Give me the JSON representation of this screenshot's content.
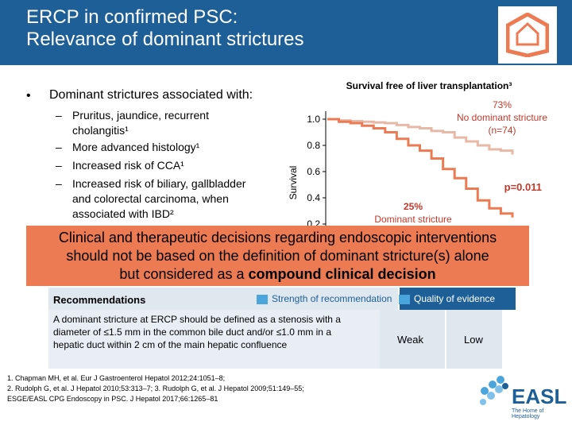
{
  "header": {
    "title_line1": "ERCP in confirmed PSC:",
    "title_line2": "Relevance of dominant strictures"
  },
  "bullet": {
    "marker": "•",
    "heading": "Dominant strictures associated with:",
    "items": [
      {
        "dash": "–",
        "text": "Pruritus, jaundice, recurrent cholangitis¹"
      },
      {
        "dash": "–",
        "text": "More advanced histology¹"
      },
      {
        "dash": "–",
        "text": "Increased risk of CCA¹"
      },
      {
        "dash": "–",
        "text": "Increased risk of biliary, gallbladder and colorectal carcinoma, when associated with IBD²"
      }
    ]
  },
  "chart_data": {
    "type": "line",
    "title": "Survival free of liver transplantation³",
    "ylabel": "Survival",
    "yticks": [
      "1.0",
      "0.8",
      "0.6",
      "0.4",
      "0.2"
    ],
    "ylim": [
      0.2,
      1.0
    ],
    "series": [
      {
        "name": "No dominant stricture (n=74)",
        "color": "#e8b8a6",
        "steps": [
          [
            0,
            1.0
          ],
          [
            1,
            0.99
          ],
          [
            2,
            0.985
          ],
          [
            3,
            0.98
          ],
          [
            4,
            0.975
          ],
          [
            5,
            0.97
          ],
          [
            6,
            0.955
          ],
          [
            7,
            0.94
          ],
          [
            8,
            0.93
          ],
          [
            9,
            0.91
          ],
          [
            10,
            0.9
          ],
          [
            11,
            0.86
          ],
          [
            12,
            0.83
          ],
          [
            13,
            0.8
          ],
          [
            14,
            0.77
          ],
          [
            15,
            0.76
          ],
          [
            16,
            0.73
          ]
        ]
      },
      {
        "name": "Dominant stricture",
        "color": "#ec7b54",
        "steps": [
          [
            0,
            1.0
          ],
          [
            1,
            0.98
          ],
          [
            2,
            0.97
          ],
          [
            3,
            0.95
          ],
          [
            4,
            0.93
          ],
          [
            5,
            0.9
          ],
          [
            6,
            0.85
          ],
          [
            7,
            0.8
          ],
          [
            8,
            0.76
          ],
          [
            9,
            0.7
          ],
          [
            10,
            0.62
          ],
          [
            11,
            0.55
          ],
          [
            12,
            0.47
          ],
          [
            13,
            0.38
          ],
          [
            14,
            0.32
          ],
          [
            15,
            0.28
          ],
          [
            16,
            0.25
          ]
        ]
      }
    ],
    "annotations": {
      "upper_pct": "73%",
      "upper_line1": "No dominant stricture",
      "upper_line2": "(n=74)",
      "pvalue": "p=0.011",
      "lower_pct": "25%",
      "lower_label": "Dominant stricture"
    }
  },
  "banner": {
    "line1": "Clinical and therapeutic decisions regarding endoscopic interventions",
    "line2": "should not be based on the definition of dominant stricture(s) alone",
    "line3_normal": "but considered as a ",
    "line3_bold": "compound clinical decision"
  },
  "recommendations": {
    "header": "Recommendations",
    "strength_label": "Strength of recommendation",
    "quality_label": "Quality of evidence",
    "text": "A dominant stricture at ERCP should be defined as a stenosis with a diameter of ≤1.5 mm in the common bile duct and/or ≤1.0 mm in a hepatic duct within 2 cm of the main hepatic confluence",
    "strength": "Weak",
    "quality": "Low",
    "accent": "#4aa5dc"
  },
  "references": [
    "1. Chapman MH, et al. Eur J Gastroenterol Hepatol 2012;24:1051–8;",
    "2. Rudolph G, et al. J Hepatol 2010;53:313–7; 3. Rudolph G, et al. J Hepatol 2009;51:149–55;",
    "ESGE/EASL CPG Endoscopy in PSC. J Hepatol 2017;66:1265–81"
  ],
  "logo": {
    "text": "EASL",
    "tagline": "The Home of Hepatology"
  },
  "colors": {
    "brand": "#1d5f96",
    "banner": "#ec7b54",
    "accent": "#4aa5dc"
  }
}
